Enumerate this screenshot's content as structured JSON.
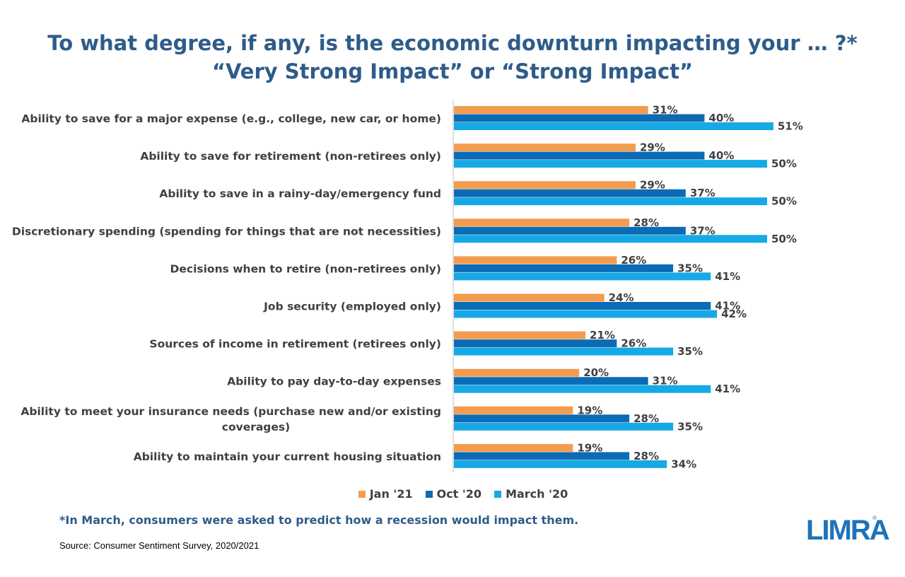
{
  "title": {
    "line1": "To what degree, if any, is the economic downturn impacting your … ?*",
    "line2": "“Very Strong Impact” or “Strong Impact”"
  },
  "chart_data": {
    "type": "bar",
    "orientation": "horizontal",
    "categories": [
      "Ability to save for a major expense (e.g., college, new car, or home)",
      "Ability to save for retirement (non-retirees only)",
      "Ability to save in a rainy-day/emergency fund",
      "Discretionary spending (spending for things that are not necessities)",
      "Decisions when to retire (non-retirees only)",
      "Job security (employed only)",
      "Sources of income in retirement (retirees only)",
      "Ability to pay day-to-day expenses",
      "Ability to meet your insurance needs (purchase new and/or existing coverages)",
      "Ability to maintain your current housing situation"
    ],
    "category_lines": [
      [
        "Ability to save for a major expense (e.g., college, new car, or home)"
      ],
      [
        "Ability to save for retirement (non-retirees only)"
      ],
      [
        "Ability to save in a rainy-day/emergency fund"
      ],
      [
        "Discretionary spending (spending for things that are not necessities)"
      ],
      [
        "Decisions when to retire (non-retirees only)"
      ],
      [
        "Job security (employed only)"
      ],
      [
        "Sources of income in retirement (retirees only)"
      ],
      [
        "Ability to pay day-to-day expenses"
      ],
      [
        "Ability to meet your insurance needs (purchase new and/or existing",
        "coverages)"
      ],
      [
        "Ability to maintain your current housing situation"
      ]
    ],
    "series": [
      {
        "name": "Jan '21",
        "color": "#f39c4f",
        "values": [
          31,
          29,
          29,
          28,
          26,
          24,
          21,
          20,
          19,
          19
        ]
      },
      {
        "name": "Oct '20",
        "color": "#0b6bb5",
        "values": [
          40,
          40,
          37,
          37,
          35,
          41,
          26,
          31,
          28,
          28
        ]
      },
      {
        "name": "March '20",
        "color": "#17a9e6",
        "values": [
          51,
          50,
          50,
          50,
          41,
          42,
          35,
          41,
          35,
          34
        ]
      }
    ],
    "value_suffix": "%",
    "xlim": [
      0,
      100
    ],
    "grid": false,
    "legend_position": "bottom"
  },
  "footnote": "*In March, consumers were asked to predict how a recession would impact them.",
  "source": "Source: Consumer Sentiment Survey, 2020/2021",
  "logo": {
    "text": "LIMRA",
    "reg": "®",
    "color": "#1e73b8"
  }
}
